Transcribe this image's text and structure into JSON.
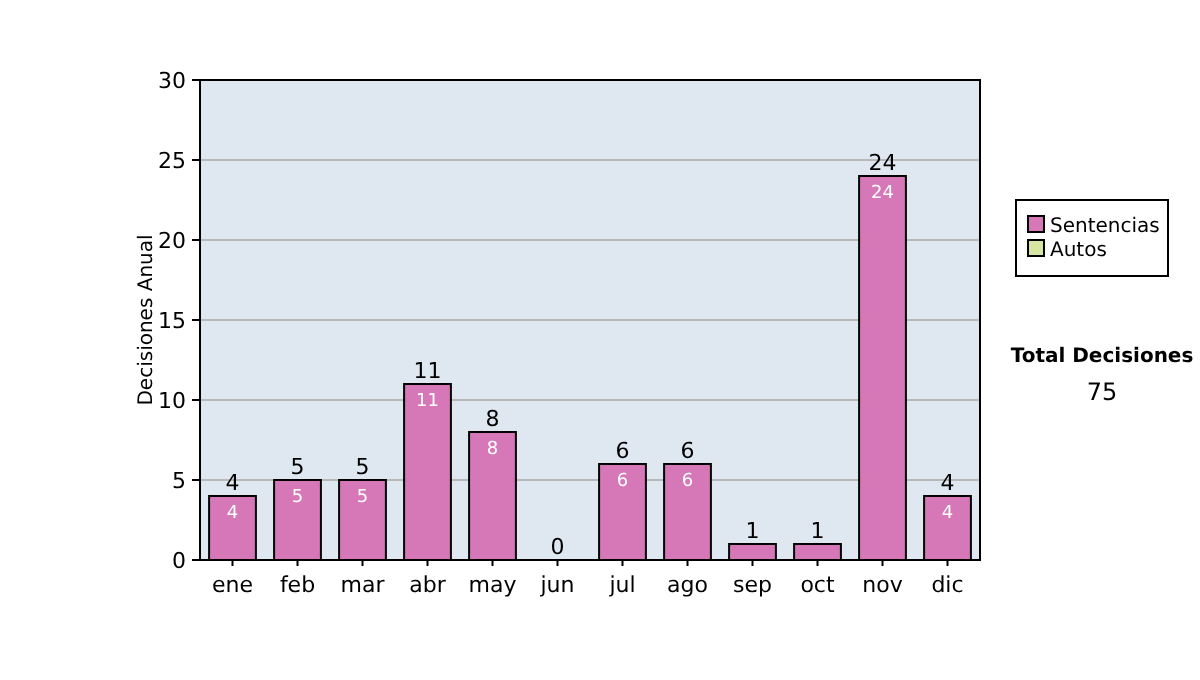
{
  "chart_data": {
    "type": "bar",
    "ylabel": "Decisiones Anual",
    "categories": [
      "ene",
      "feb",
      "mar",
      "abr",
      "may",
      "jun",
      "jul",
      "ago",
      "sep",
      "oct",
      "nov",
      "dic"
    ],
    "series": [
      {
        "name": "Sentencias",
        "color": "#d678b8",
        "values": [
          4,
          5,
          5,
          11,
          8,
          0,
          6,
          6,
          1,
          1,
          24,
          4
        ],
        "value_labels": [
          "4",
          "5",
          "5",
          "11",
          "8",
          null,
          "6",
          "6",
          null,
          null,
          "24",
          "4"
        ]
      },
      {
        "name": "Autos",
        "color": "#d4e6a0",
        "values": [
          0,
          0,
          0,
          0,
          0,
          0,
          0,
          0,
          0,
          0,
          0,
          0
        ]
      }
    ],
    "stacked": true,
    "totals": [
      "4",
      "5",
      "5",
      "11",
      "8",
      "0",
      "6",
      "6",
      "1",
      "1",
      "24",
      "4"
    ],
    "ylim": [
      0,
      30
    ],
    "yticks": [
      0,
      5,
      10,
      15,
      20,
      25,
      30
    ],
    "grid": "y",
    "legend": "right",
    "annotations": [
      "Total Decisiones",
      "75"
    ]
  }
}
